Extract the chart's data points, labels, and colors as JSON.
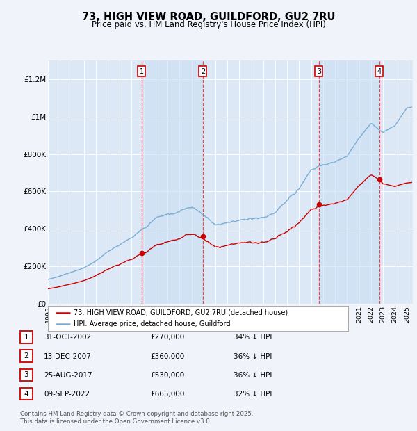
{
  "title": "73, HIGH VIEW ROAD, GUILDFORD, GU2 7RU",
  "subtitle": "Price paid vs. HM Land Registry's House Price Index (HPI)",
  "background_color": "#f0f4fa",
  "plot_bg_color": "#dce8f5",
  "ylim": [
    0,
    1300000
  ],
  "yticks": [
    0,
    200000,
    400000,
    600000,
    800000,
    1000000,
    1200000
  ],
  "ytick_labels": [
    "£0",
    "£200K",
    "£400K",
    "£600K",
    "£800K",
    "£1M",
    "£1.2M"
  ],
  "sales": [
    {
      "num": 1,
      "date": "31-OCT-2002",
      "date_x": 2002.83,
      "price": 270000,
      "pct": "34%",
      "dir": "↓"
    },
    {
      "num": 2,
      "date": "13-DEC-2007",
      "date_x": 2007.95,
      "price": 360000,
      "pct": "36%",
      "dir": "↓"
    },
    {
      "num": 3,
      "date": "25-AUG-2017",
      "date_x": 2017.65,
      "price": 530000,
      "pct": "36%",
      "dir": "↓"
    },
    {
      "num": 4,
      "date": "09-SEP-2022",
      "date_x": 2022.69,
      "price": 665000,
      "pct": "32%",
      "dir": "↓"
    }
  ],
  "legend_label_red": "73, HIGH VIEW ROAD, GUILDFORD, GU2 7RU (detached house)",
  "legend_label_blue": "HPI: Average price, detached house, Guildford",
  "footer": "Contains HM Land Registry data © Crown copyright and database right 2025.\nThis data is licensed under the Open Government Licence v3.0.",
  "red_color": "#cc0000",
  "blue_color": "#7aadd4",
  "vline_color": "#ee4444",
  "shade_color": "#ddeeff",
  "xmin": 1995.0,
  "xmax": 2025.5,
  "hpi_anchor_years": [
    1995,
    1996,
    1997,
    1998,
    1999,
    2000,
    2001,
    2002,
    2003,
    2004,
    2005,
    2006,
    2007,
    2008,
    2009,
    2010,
    2011,
    2012,
    2013,
    2014,
    2015,
    2016,
    2017,
    2018,
    2019,
    2020,
    2021,
    2022,
    2023,
    2024,
    2025
  ],
  "hpi_anchor_vals": [
    130000,
    148000,
    175000,
    205000,
    245000,
    295000,
    340000,
    380000,
    430000,
    495000,
    520000,
    550000,
    578000,
    545000,
    500000,
    520000,
    525000,
    515000,
    535000,
    575000,
    635000,
    710000,
    800000,
    820000,
    825000,
    840000,
    930000,
    1000000,
    940000,
    965000,
    1050000
  ],
  "red_anchor_years": [
    1995,
    2002.83,
    2007.95,
    2017.65,
    2022.69,
    2025.0
  ],
  "red_anchor_prices": [
    80000,
    270000,
    360000,
    530000,
    665000,
    645000
  ]
}
